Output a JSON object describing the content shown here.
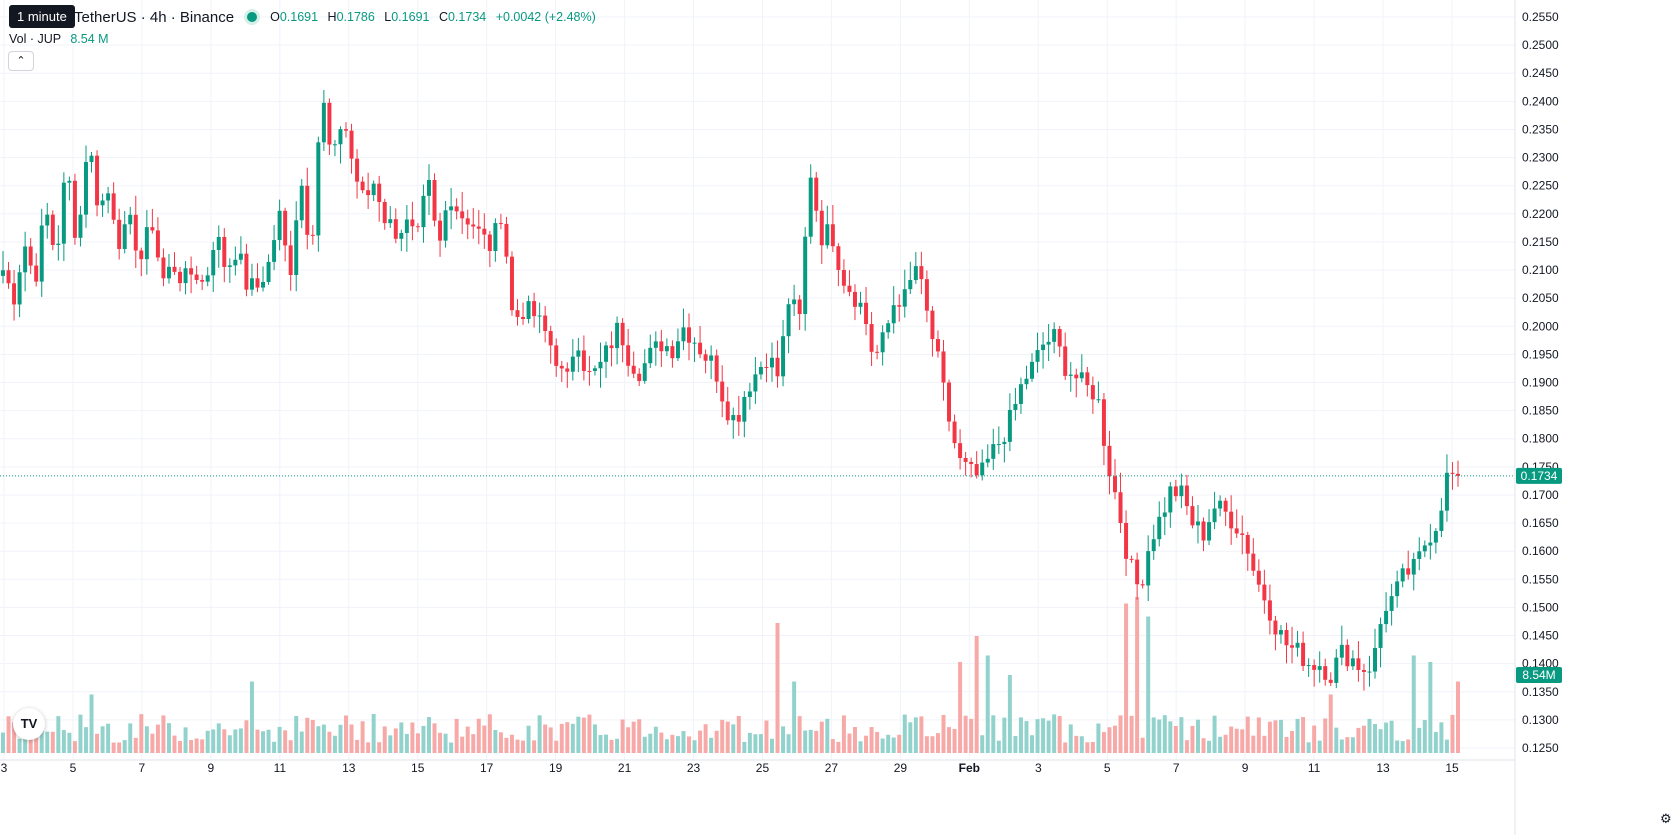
{
  "header": {
    "tooltip": "1 minute",
    "symbol": "TetherUS · 4h · Binance",
    "ohlc": [
      {
        "k": "O",
        "v": "0.1691"
      },
      {
        "k": "H",
        "v": "0.1786"
      },
      {
        "k": "L",
        "v": "0.1691"
      },
      {
        "k": "C",
        "v": "0.1734"
      }
    ],
    "change": "+0.0042 (+2.48%)",
    "volume_label": "Vol · JUP",
    "volume_value": "8.54 M",
    "collapse_icon": "chevron-up-icon"
  },
  "colors": {
    "up": "#089981",
    "down": "#f23645",
    "up_vol": "#92d2cc",
    "down_vol": "#f7a9a7",
    "grid": "#f0f3fa"
  },
  "chart_data": {
    "type": "candlestick",
    "price_axis": {
      "ticks": [
        "0.2550",
        "0.2500",
        "0.2450",
        "0.2400",
        "0.2350",
        "0.2300",
        "0.2250",
        "0.2200",
        "0.2150",
        "0.2100",
        "0.2050",
        "0.2000",
        "0.1950",
        "0.1900",
        "0.1850",
        "0.1800",
        "0.1750",
        "0.1700",
        "0.1650",
        "0.1600",
        "0.1550",
        "0.1500",
        "0.1450",
        "0.1400",
        "0.1350",
        "0.1300",
        "0.1250"
      ],
      "ylim": [
        0.1225,
        0.2575
      ]
    },
    "time_axis": {
      "labels": [
        "3",
        "5",
        "7",
        "9",
        "11",
        "13",
        "15",
        "17",
        "19",
        "21",
        "23",
        "25",
        "27",
        "29",
        "Feb",
        "3",
        "5",
        "7",
        "9",
        "11",
        "13",
        "15"
      ],
      "bold": "Feb"
    },
    "last_price": "0.1734",
    "last_volume": "8.54M",
    "path": [
      [
        0.21,
        0.205
      ],
      [
        0.215,
        0.208
      ],
      [
        0.221,
        0.212
      ],
      [
        0.229,
        0.214
      ],
      [
        0.234,
        0.221
      ],
      [
        0.224,
        0.215
      ],
      [
        0.218,
        0.212
      ],
      [
        0.219,
        0.208
      ],
      [
        0.211,
        0.208
      ],
      [
        0.21,
        0.207
      ],
      [
        0.217,
        0.21
      ],
      [
        0.214,
        0.207
      ],
      [
        0.207,
        0.211
      ],
      [
        0.22,
        0.209
      ],
      [
        0.227,
        0.213
      ],
      [
        0.242,
        0.228
      ],
      [
        0.238,
        0.228
      ],
      [
        0.222,
        0.226
      ],
      [
        0.219,
        0.217
      ],
      [
        0.218,
        0.215
      ],
      [
        0.226,
        0.213
      ],
      [
        0.224,
        0.22
      ],
      [
        0.219,
        0.216
      ],
      [
        0.214,
        0.221
      ],
      [
        0.201,
        0.203
      ],
      [
        0.202,
        0.199
      ],
      [
        0.195,
        0.189
      ],
      [
        0.199,
        0.191
      ],
      [
        0.192,
        0.196
      ],
      [
        0.2,
        0.194
      ],
      [
        0.192,
        0.195
      ],
      [
        0.197,
        0.196
      ],
      [
        0.2,
        0.198
      ],
      [
        0.195,
        0.193
      ],
      [
        0.186,
        0.183
      ],
      [
        0.189,
        0.192
      ],
      [
        0.195,
        0.191
      ],
      [
        0.205,
        0.201
      ],
      [
        0.228,
        0.216
      ],
      [
        0.217,
        0.209
      ],
      [
        0.206,
        0.203
      ],
      [
        0.194,
        0.198
      ],
      [
        0.205,
        0.205
      ],
      [
        0.211,
        0.202
      ],
      [
        0.194,
        0.184
      ],
      [
        0.176,
        0.174
      ],
      [
        0.173,
        0.177
      ],
      [
        0.18,
        0.184
      ],
      [
        0.19,
        0.193
      ],
      [
        0.197,
        0.198
      ],
      [
        0.193,
        0.191
      ],
      [
        0.189,
        0.188
      ],
      [
        0.176,
        0.168
      ],
      [
        0.158,
        0.153
      ],
      [
        0.162,
        0.166
      ],
      [
        0.171,
        0.17
      ],
      [
        0.165,
        0.163
      ],
      [
        0.168,
        0.167
      ],
      [
        0.165,
        0.162
      ],
      [
        0.155,
        0.151
      ],
      [
        0.146,
        0.143
      ],
      [
        0.142,
        0.14
      ],
      [
        0.14,
        0.138
      ],
      [
        0.142,
        0.141
      ],
      [
        0.139,
        0.14
      ],
      [
        0.15,
        0.152
      ],
      [
        0.156,
        0.157
      ],
      [
        0.162,
        0.165
      ],
      [
        0.1734,
        0.1734
      ]
    ],
    "candle_count": 264,
    "seed": 7,
    "volume_spikes": [
      {
        "i": 16,
        "v": 0.45
      },
      {
        "i": 45,
        "v": 0.55
      },
      {
        "i": 67,
        "v": 0.3
      },
      {
        "i": 140,
        "v": 1.0
      },
      {
        "i": 143,
        "v": 0.55
      },
      {
        "i": 173,
        "v": 0.7
      },
      {
        "i": 176,
        "v": 0.9
      },
      {
        "i": 178,
        "v": 0.75
      },
      {
        "i": 182,
        "v": 0.6
      },
      {
        "i": 203,
        "v": 1.15
      },
      {
        "i": 205,
        "v": 1.2
      },
      {
        "i": 207,
        "v": 1.05
      },
      {
        "i": 240,
        "v": 0.45
      },
      {
        "i": 255,
        "v": 0.75
      },
      {
        "i": 258,
        "v": 0.7
      },
      {
        "i": 263,
        "v": 0.55
      }
    ]
  }
}
